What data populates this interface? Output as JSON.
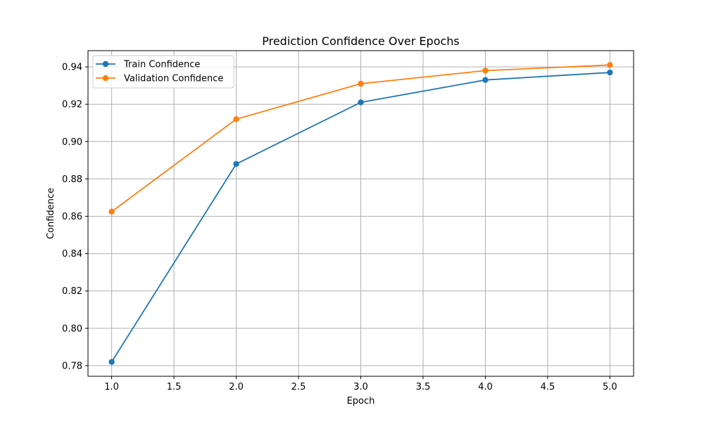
{
  "chart_data": {
    "type": "line",
    "title": "Prediction Confidence Over Epochs",
    "xlabel": "Epoch",
    "ylabel": "Confidence",
    "x": [
      1,
      2,
      3,
      4,
      5
    ],
    "xlim": [
      0.81,
      5.19
    ],
    "ylim": [
      0.7743,
      0.9487
    ],
    "xticks": [
      1.0,
      1.5,
      2.0,
      2.5,
      3.0,
      3.5,
      4.0,
      4.5,
      5.0
    ],
    "xtick_labels": [
      "1.0",
      "1.5",
      "2.0",
      "2.5",
      "3.0",
      "3.5",
      "4.0",
      "4.5",
      "5.0"
    ],
    "yticks": [
      0.78,
      0.8,
      0.82,
      0.84,
      0.86,
      0.88,
      0.9,
      0.92,
      0.94
    ],
    "ytick_labels": [
      "0.78",
      "0.80",
      "0.82",
      "0.84",
      "0.86",
      "0.88",
      "0.90",
      "0.92",
      "0.94"
    ],
    "grid": true,
    "legend_position": "top-left",
    "series": [
      {
        "name": "Train Confidence",
        "color": "#1f77b4",
        "marker": "circle",
        "values": [
          0.782,
          0.888,
          0.921,
          0.933,
          0.937
        ]
      },
      {
        "name": "Validation Confidence",
        "color": "#ff7f0e",
        "marker": "circle",
        "values": [
          0.8625,
          0.912,
          0.931,
          0.938,
          0.941
        ]
      }
    ]
  }
}
